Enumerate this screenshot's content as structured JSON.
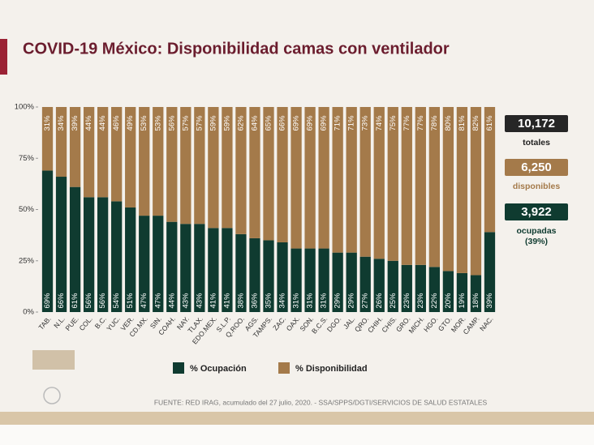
{
  "chart_data": {
    "type": "stacked_bar",
    "title": "COVID-19 México: Disponibilidad camas con ventilador",
    "categories": [
      "TAB.",
      "N.L.",
      "PUE.",
      "COL.",
      "B.C.",
      "YUC.",
      "VER.",
      "CD.MX.",
      "SIN.",
      "COAH.",
      "NAY.",
      "TLAX.",
      "EDO.MEX.",
      "S.L.P.",
      "Q.ROO.",
      "AGS.",
      "TAMPS.",
      "ZAC.",
      "OAX.",
      "SON.",
      "B.C.S.",
      "DGO.",
      "JAL.",
      "QRO.",
      "CHIH.",
      "CHIS.",
      "GRO.",
      "MICH.",
      "HGO.",
      "GTO.",
      "MOR.",
      "CAMP.",
      "NAC."
    ],
    "series": [
      {
        "name": "% Ocupación",
        "color": "#0f3b30",
        "values": [
          69,
          66,
          61,
          56,
          56,
          54,
          51,
          47,
          47,
          44,
          43,
          43,
          41,
          41,
          38,
          36,
          35,
          34,
          31,
          31,
          31,
          29,
          29,
          27,
          26,
          25,
          23,
          23,
          22,
          20,
          19,
          18,
          39
        ],
        "value_labels": [
          "69%",
          "66%",
          "61%",
          "56%",
          "56%",
          "54%",
          "51%",
          "47%",
          "47%",
          "44%",
          "43%",
          "43%",
          "41%",
          "41%",
          "38%",
          "36%",
          "35%",
          "34%",
          "31%",
          "31%",
          "31%",
          "29%",
          "29%",
          "27%",
          "26%",
          "25%",
          "23%",
          "23%",
          "22%",
          "20%",
          "19%",
          "18%",
          "39%"
        ]
      },
      {
        "name": "% Disponibilidad",
        "color": "#a47a4a",
        "values": [
          31,
          34,
          39,
          44,
          44,
          46,
          49,
          53,
          53,
          56,
          57,
          57,
          59,
          59,
          62,
          64,
          65,
          66,
          69,
          69,
          69,
          71,
          71,
          73,
          74,
          75,
          77,
          77,
          78,
          80,
          81,
          82,
          61
        ],
        "value_labels": [
          "31%",
          "34%",
          "39%",
          "44%",
          "44%",
          "46%",
          "49%",
          "53%",
          "53%",
          "56%",
          "57%",
          "57%",
          "59%",
          "59%",
          "62%",
          "64%",
          "65%",
          "66%",
          "69%",
          "69%",
          "69%",
          "71%",
          "71%",
          "73%",
          "74%",
          "75%",
          "77%",
          "77%",
          "78%",
          "80%",
          "81%",
          "82%",
          "61%"
        ]
      }
    ],
    "ylim": [
      0,
      100
    ],
    "yticks": [
      {
        "value": 0,
        "label": "0%"
      },
      {
        "value": 25,
        "label": "25%"
      },
      {
        "value": 50,
        "label": "50%"
      },
      {
        "value": 75,
        "label": "75%"
      },
      {
        "value": 100,
        "label": "100%"
      }
    ],
    "grid": false,
    "legend": "bottom"
  },
  "summary": [
    {
      "value": "10,172",
      "caption": [
        "totales"
      ]
    },
    {
      "value": "6,250",
      "caption": [
        "disponibles"
      ]
    },
    {
      "value": "3,922",
      "caption": [
        "ocupadas",
        "(39%)"
      ]
    }
  ],
  "source": "FUENTE: RED IRAG, acumulado del 27 julio, 2020.  -  SSA/SPPS/DGTI/SERVICIOS DE SALUD ESTATALES"
}
